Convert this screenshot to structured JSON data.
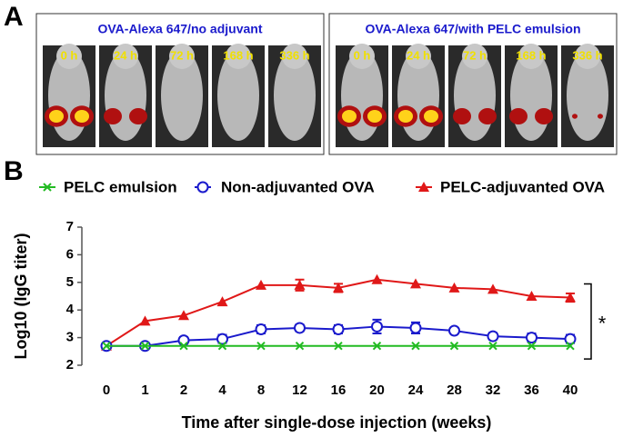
{
  "panels": {
    "a": "A",
    "b": "B"
  },
  "imaging": [
    {
      "title": "OVA-Alexa 647/no adjuvant",
      "times": [
        "0 h",
        "24 h",
        "72 h",
        "168 h",
        "336 h"
      ]
    },
    {
      "title": "OVA-Alexa 647/with PELC emulsion",
      "times": [
        "0 h",
        "24 h",
        "72 h",
        "168 h",
        "336 h"
      ]
    }
  ],
  "chart_data": {
    "type": "line",
    "categories": [
      "0",
      "1",
      "2",
      "4",
      "8",
      "12",
      "16",
      "20",
      "24",
      "28",
      "32",
      "36",
      "40"
    ],
    "xlabel": "Time after single-dose injection (weeks)",
    "ylabel": "Log10 (IgG titer)",
    "ylim": [
      2,
      7
    ],
    "yticks": [
      2,
      3,
      4,
      5,
      6,
      7
    ],
    "legend": "top",
    "annotation": "*",
    "series": [
      {
        "name": "PELC emulsion",
        "color": "#22bb22",
        "marker": "x",
        "values": [
          2.7,
          2.7,
          2.7,
          2.7,
          2.7,
          2.7,
          2.7,
          2.7,
          2.7,
          2.7,
          2.7,
          2.7,
          2.7
        ]
      },
      {
        "name": "Non-adjuvanted OVA",
        "color": "#1a1acc",
        "marker": "circle",
        "values": [
          2.7,
          2.7,
          2.9,
          2.95,
          3.3,
          3.35,
          3.3,
          3.4,
          3.35,
          3.25,
          3.05,
          3.0,
          2.95
        ],
        "errors": [
          0,
          0,
          0.12,
          0.15,
          0.15,
          0.12,
          0.15,
          0.25,
          0.2,
          0.05,
          0.12,
          0.15,
          0.15
        ]
      },
      {
        "name": "PELC-adjuvanted OVA",
        "color": "#e01818",
        "marker": "triangle",
        "values": [
          2.7,
          3.6,
          3.8,
          4.3,
          4.9,
          4.9,
          4.8,
          5.1,
          4.95,
          4.8,
          4.75,
          4.5,
          4.45
        ],
        "errors": [
          0,
          0,
          0,
          0,
          0,
          0.2,
          0.15,
          0,
          0,
          0,
          0,
          0,
          0.15
        ]
      }
    ]
  }
}
